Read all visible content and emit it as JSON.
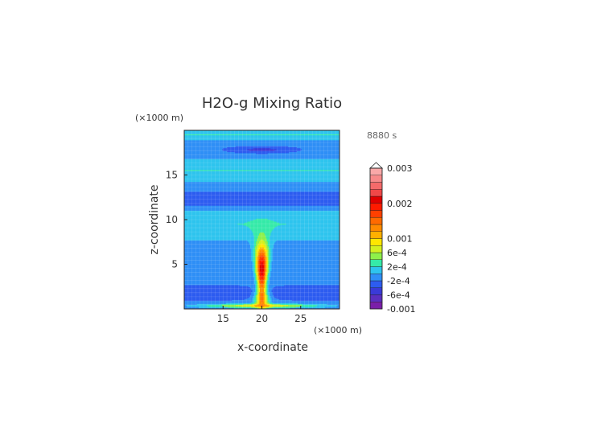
{
  "chart_data": {
    "type": "heatmap",
    "title": "H2O-g Mixing Ratio",
    "time_label": "8880 s",
    "xlabel": "x-coordinate",
    "ylabel": "z-coordinate",
    "x_unit": "(×1000 m)",
    "y_unit": "(×1000 m)",
    "xlim": [
      10,
      30
    ],
    "ylim": [
      0,
      20
    ],
    "x_ticks": [
      15,
      20,
      25
    ],
    "y_ticks": [
      5,
      10,
      15
    ],
    "colorbar": {
      "labels": [
        "0.003",
        "0.002",
        "0.001",
        "6e-4",
        "2e-4",
        "-2e-4",
        "-6e-4",
        "-0.001"
      ],
      "label_values": [
        0.003,
        0.002,
        0.001,
        0.0006,
        0.0002,
        -0.0002,
        -0.0006,
        -0.001
      ],
      "levels": [
        -0.001,
        -0.0008,
        -0.0006,
        -0.0004,
        -0.0002,
        0,
        0.0002,
        0.0004,
        0.0006,
        0.0008,
        0.001,
        0.0012,
        0.0014,
        0.0016,
        0.0018,
        0.002,
        0.0022,
        0.0024,
        0.0026,
        0.0028,
        0.003
      ],
      "colors": [
        "#7a1fa8",
        "#5b2fc0",
        "#3a3ad8",
        "#2d5cf0",
        "#2f8ff6",
        "#2ec4ee",
        "#35eaa8",
        "#8ef04a",
        "#d4f020",
        "#ffe600",
        "#ffb000",
        "#ff8a00",
        "#ff6a00",
        "#ff4000",
        "#ff1a00",
        "#e00000",
        "#f04848",
        "#f56a6a",
        "#f78a8a",
        "#f9a8a8"
      ]
    }
  }
}
